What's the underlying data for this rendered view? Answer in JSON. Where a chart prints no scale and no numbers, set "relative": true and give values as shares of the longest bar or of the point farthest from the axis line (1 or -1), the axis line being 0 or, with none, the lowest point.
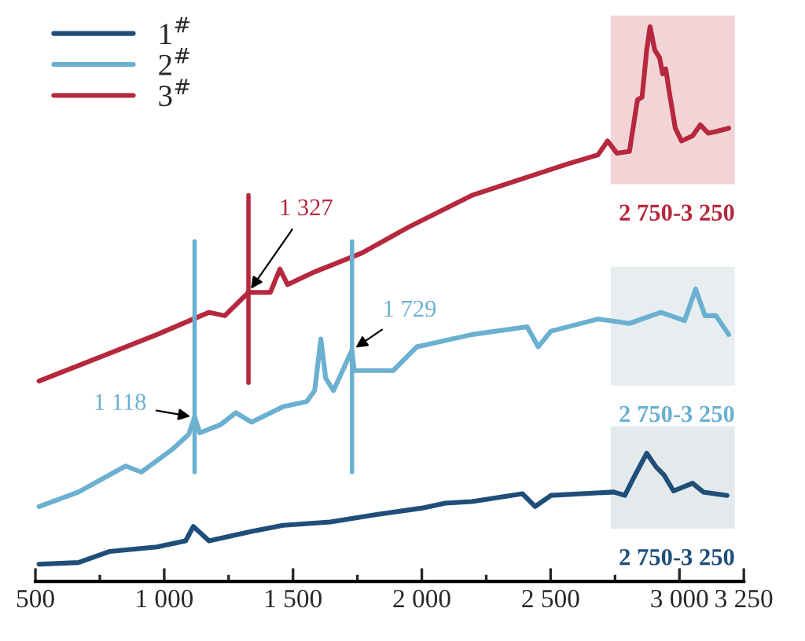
{
  "chart_data": {
    "type": "line",
    "relative": true,
    "legend": "top left",
    "grid": false,
    "marker": "none",
    "line_style": "solid",
    "xlim": [
      500,
      3250
    ],
    "xticks": [
      500,
      {
        "value": 750,
        "label": null
      },
      {
        "value": 1000,
        "label": "1 000"
      },
      {
        "value": 1250,
        "label": null
      },
      {
        "value": 1500,
        "label": "1 500"
      },
      {
        "value": 1750,
        "label": null
      },
      {
        "value": 2000,
        "label": "2 000"
      },
      {
        "value": 2250,
        "label": null
      },
      {
        "value": 2500,
        "label": "2 500"
      },
      {
        "value": 2750,
        "label": null
      },
      {
        "value": 3000,
        "label": "3 000"
      },
      {
        "value": 3250,
        "label": "3 250"
      }
    ],
    "series": [
      {
        "name": "1$^{#}$",
        "color": "#1f4e79",
        "x": [
          514,
          667,
          789,
          972,
          1083,
          1113,
          1174,
          1339,
          1461,
          1644,
          1829,
          1999,
          2091,
          2195,
          2391,
          2440,
          2501,
          2745,
          2788,
          2825,
          2873,
          2910,
          2940,
          2977,
          3051,
          3093,
          3185
        ],
        "values": [
          0.031,
          0.034,
          0.054,
          0.062,
          0.073,
          0.099,
          0.073,
          0.09,
          0.101,
          0.107,
          0.121,
          0.132,
          0.141,
          0.144,
          0.158,
          0.135,
          0.155,
          0.161,
          0.155,
          0.189,
          0.231,
          0.206,
          0.192,
          0.163,
          0.177,
          0.161,
          0.155
        ]
      },
      {
        "name": "2$^{#}$",
        "color": "#6bb0d0",
        "x": [
          514,
          667,
          850,
          911,
          1034,
          1095,
          1118,
          1138,
          1217,
          1278,
          1339,
          1461,
          1553,
          1584,
          1608,
          1627,
          1657,
          1729,
          1737,
          1798,
          1889,
          1981,
          2195,
          2409,
          2452,
          2501,
          2684,
          2806,
          2928,
          3020,
          3063,
          3099,
          3142,
          3191
        ],
        "values": [
          0.135,
          0.161,
          0.208,
          0.197,
          0.239,
          0.265,
          0.296,
          0.268,
          0.282,
          0.304,
          0.287,
          0.315,
          0.324,
          0.344,
          0.437,
          0.366,
          0.344,
          0.417,
          0.38,
          0.38,
          0.38,
          0.423,
          0.445,
          0.459,
          0.423,
          0.451,
          0.473,
          0.465,
          0.485,
          0.47,
          0.527,
          0.479,
          0.479,
          0.445
        ]
      },
      {
        "name": "3$^{#}$",
        "color": "#b5283e",
        "x": [
          514,
          667,
          820,
          972,
          1113,
          1174,
          1235,
          1327,
          1412,
          1449,
          1479,
          1584,
          1767,
          1950,
          2195,
          2378,
          2562,
          2684,
          2721,
          2757,
          2806,
          2837,
          2855,
          2873,
          2886,
          2904,
          2923,
          2935,
          2947,
          2959,
          2984,
          3008,
          3051,
          3081,
          3112,
          3142,
          3191
        ],
        "values": [
          0.361,
          0.389,
          0.417,
          0.445,
          0.473,
          0.485,
          0.479,
          0.521,
          0.521,
          0.563,
          0.535,
          0.558,
          0.592,
          0.639,
          0.696,
          0.724,
          0.752,
          0.769,
          0.794,
          0.772,
          0.775,
          0.868,
          0.873,
          0.958,
          1.0,
          0.958,
          0.944,
          0.915,
          0.924,
          0.887,
          0.817,
          0.794,
          0.803,
          0.823,
          0.808,
          0.811,
          0.817
        ]
      }
    ],
    "ref_lines": [
      {
        "axis": "x",
        "value": 1118,
        "color": "#6bb0d0"
      },
      {
        "axis": "x",
        "value": 1729,
        "color": "#6bb0d0"
      },
      {
        "axis": "x",
        "value": 1327,
        "color": "#b5283e"
      }
    ],
    "annotations": [
      {
        "text": "1 327",
        "x": 1327,
        "y": 0.521
      },
      {
        "text": "1 118",
        "x": 1118,
        "y": 0.296
      },
      {
        "text": "1 729",
        "x": 1729,
        "y": 0.417
      },
      "2 750-3 250",
      "2 750-3 250",
      "2 750-3 250"
    ]
  }
}
